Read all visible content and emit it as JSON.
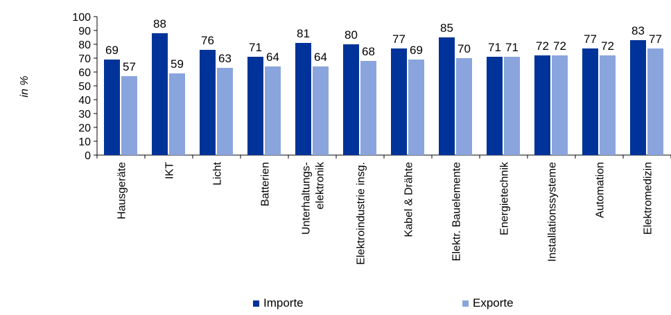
{
  "chart_data": {
    "type": "bar",
    "ylabel": "in %",
    "ylim": [
      0,
      100
    ],
    "yticks": [
      0,
      10,
      20,
      30,
      40,
      50,
      60,
      70,
      80,
      90,
      100
    ],
    "grid": false,
    "legend_position": "bottom",
    "categories": [
      "Hausgeräte",
      "IKT",
      "Licht",
      "Batterien",
      "Unterhaltungs-\nelektronik",
      "Elektroindustrie insg.",
      "Kabel & Drähte",
      "Elektr. Bauelemente",
      "Energietechnik",
      "Installationssysteme",
      "Automation",
      "Elektromedizin"
    ],
    "series": [
      {
        "name": "Importe",
        "color": "#003399",
        "values": [
          69,
          88,
          76,
          71,
          81,
          80,
          77,
          85,
          71,
          72,
          77,
          83
        ]
      },
      {
        "name": "Exporte",
        "color": "#8aa5dd",
        "values": [
          57,
          59,
          63,
          64,
          64,
          68,
          69,
          70,
          71,
          72,
          72,
          77
        ]
      }
    ]
  }
}
